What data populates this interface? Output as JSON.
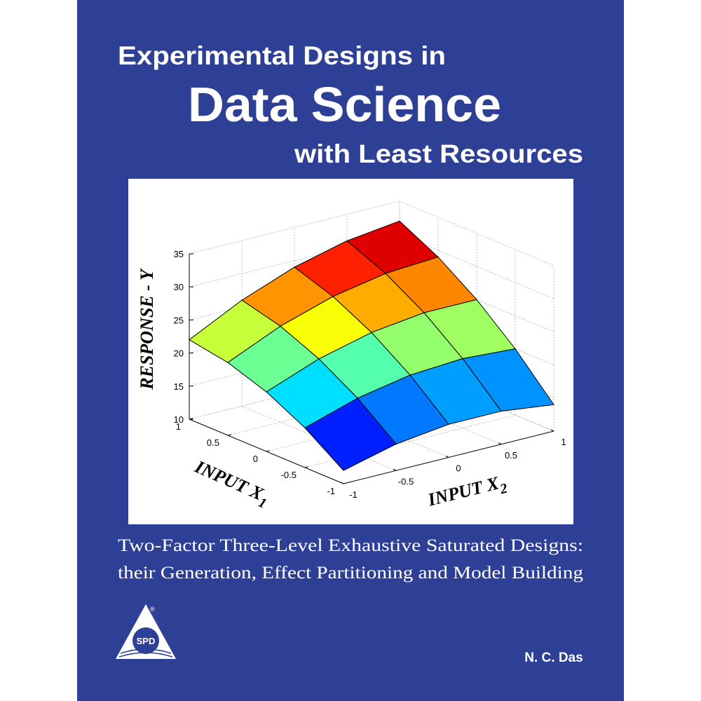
{
  "cover": {
    "title_lines": [
      "Experimental Designs in",
      "Data Science",
      "with Least Resources"
    ],
    "subtitle_lines": [
      "Two-Factor Three-Level Exhaustive Saturated Designs:",
      "their Generation, Effect Partitioning and Model Building"
    ],
    "publisher": "SPD",
    "author": "N. C. Das"
  },
  "chart_data": {
    "type": "surface",
    "zlabel": "RESPONSE - Y",
    "x1label": "INPUT X",
    "x1label_sub": "1",
    "x2label": "INPUT X",
    "x2label_sub": "2",
    "x1": [
      -1,
      -0.5,
      0,
      0.5,
      1
    ],
    "x2": [
      -1,
      -0.5,
      0,
      0.5,
      1
    ],
    "z": [
      [
        12,
        14,
        15,
        15,
        14
      ],
      [
        16,
        18.5,
        20,
        20.5,
        20
      ],
      [
        19,
        22,
        24,
        25,
        25
      ],
      [
        21,
        24.5,
        27,
        28.5,
        29
      ],
      [
        22,
        26,
        29,
        31,
        32
      ]
    ],
    "x1lim": [
      -1,
      1
    ],
    "x2lim": [
      -1,
      1
    ],
    "zlim": [
      10,
      35
    ],
    "x1ticks": [
      -1,
      -0.5,
      0,
      0.5,
      1
    ],
    "x2ticks": [
      -1,
      -0.5,
      0,
      0.5,
      1
    ],
    "zticks": [
      10,
      15,
      20,
      25,
      30,
      35
    ],
    "grid": true,
    "colormap": "jet"
  }
}
